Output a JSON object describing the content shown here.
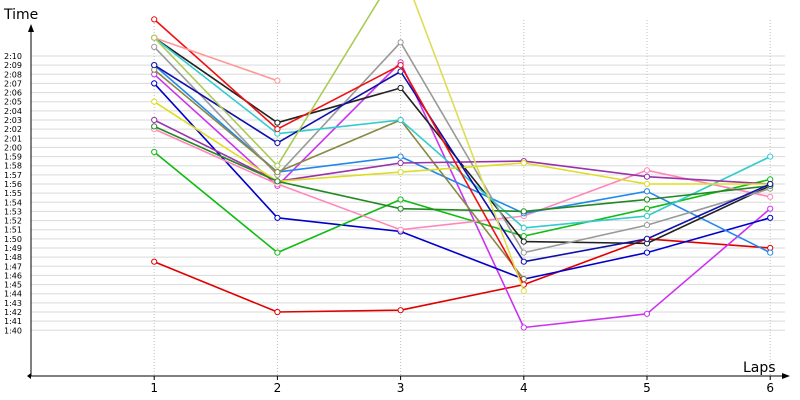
{
  "chart_data": {
    "type": "line",
    "title": "",
    "xlabel": "Laps",
    "ylabel": "Time",
    "x": [
      1,
      2,
      3,
      4,
      5,
      6
    ],
    "xlim": [
      0,
      6.15
    ],
    "ylim": [
      "1:35",
      "2:10"
    ],
    "grid": true,
    "legend": "none",
    "y_ticks": [
      "1:40",
      "1:41",
      "1:42",
      "1:43",
      "1:44",
      "1:45",
      "1:46",
      "1:47",
      "1:48",
      "1:49",
      "1:50",
      "1:51",
      "1:52",
      "1:53",
      "1:54",
      "1:55",
      "1:56",
      "1:57",
      "1:58",
      "1:59",
      "2:00",
      "2:01",
      "2:02",
      "2:03",
      "2:04",
      "2:05",
      "2:06",
      "2:07",
      "2:08",
      "2:09",
      "2:10"
    ],
    "x_ticks": [
      "1",
      "2",
      "3",
      "4",
      "5",
      "6"
    ],
    "series": [
      {
        "color": "#e00000",
        "values": [
          "1:47.5",
          "1:42.0",
          "1:42.2",
          "1:45.0",
          "1:50.0",
          "1:49.0"
        ]
      },
      {
        "color": "#cc33ee",
        "values": [
          "2:08.0",
          "1:55.8",
          "2:09.3",
          "1:40.3",
          "1:41.8",
          "1:53.3"
        ]
      },
      {
        "color": "#0000cc",
        "values": [
          "2:07.0",
          "1:52.3",
          "1:50.8",
          "1:45.6",
          "1:48.5",
          "1:52.3"
        ]
      },
      {
        "color": "#11bb11",
        "values": [
          "1:59.5",
          "1:48.5",
          "1:54.3",
          "1:50.3",
          "1:53.3",
          "1:56.5"
        ]
      },
      {
        "color": "#ff88bb",
        "values": [
          "2:02.0",
          "1:56.0",
          "1:51.0",
          "1:52.5",
          "1:57.5",
          "1:54.6"
        ]
      },
      {
        "color": "#2288ee",
        "values": [
          "2:09.0",
          "1:57.3",
          "1:59.0",
          "1:52.8",
          "1:55.2",
          "1:48.5"
        ]
      },
      {
        "color": "#222222",
        "values": [
          "2:12.0",
          "2:02.7",
          "2:06.5",
          "1:49.7",
          "1:49.5",
          "1:55.8"
        ]
      },
      {
        "color": "#999999",
        "values": [
          "2:11.0",
          "1:57.0",
          "2:11.5",
          "1:48.5",
          "1:51.5",
          "1:55.5"
        ]
      },
      {
        "color": "#888844",
        "values": [
          "2:08.5",
          "1:57.3",
          "2:03.0",
          "1:45.6",
          "",
          ""
        ]
      },
      {
        "color": "#33cccc",
        "values": [
          "2:12.0",
          "2:01.5",
          "2:03.0",
          "1:51.2",
          "1:52.5",
          "1:59.0"
        ]
      },
      {
        "color": "#9933aa",
        "values": [
          "2:03.0",
          "1:56.3",
          "1:58.3",
          "1:58.5",
          "1:56.8",
          "1:56.0"
        ]
      },
      {
        "color": "#dddd22",
        "values": [
          "2:05.0",
          "1:56.3",
          "1:57.3",
          "1:58.3",
          "1:56.0",
          "1:56.0"
        ]
      },
      {
        "color": "#228822",
        "values": [
          "2:02.3",
          "1:56.3",
          "1:53.3",
          "1:53.0",
          "1:54.3",
          "1:55.8"
        ]
      },
      {
        "color": "#1111aa",
        "values": [
          "2:09.0",
          "2:00.5",
          "2:08.3",
          "1:47.5",
          "1:50.0",
          "1:56.0"
        ]
      },
      {
        "color": "#ee1111",
        "values": [
          "2:14.0",
          "2:02.0",
          "2:09.0",
          "1:45.0",
          "",
          ""
        ]
      },
      {
        "color": "#ff9999",
        "values": [
          "2:12.0",
          "2:07.3",
          "",
          "",
          "",
          ""
        ]
      },
      {
        "color": "#aacc55",
        "values": [
          "2:12.0",
          "1:58.0",
          "2:20.0",
          "",
          "",
          ""
        ]
      },
      {
        "color": "#dddd55",
        "values": [
          "",
          "",
          "2:20.0",
          "1:44.3",
          "",
          ""
        ]
      }
    ]
  }
}
